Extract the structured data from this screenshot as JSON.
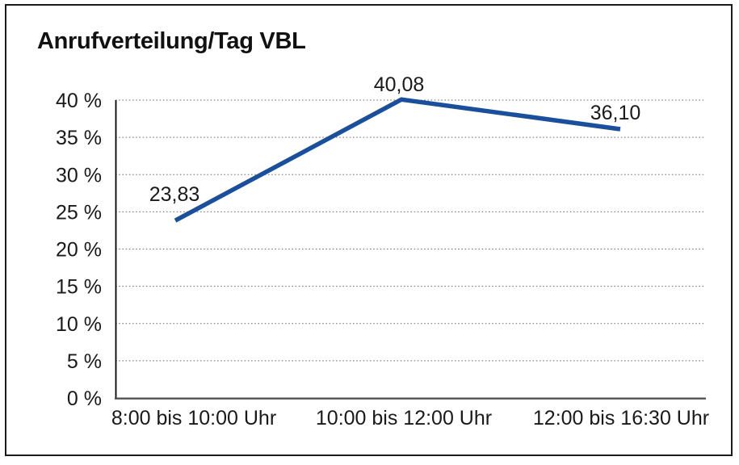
{
  "chart_data": {
    "type": "line",
    "title": "Anrufverteilung/Tag VBL",
    "categories": [
      "8:00 bis 10:00 Uhr",
      "10:00 bis 12:00 Uhr",
      "12:00 bis 16:30 Uhr"
    ],
    "values": [
      23.83,
      40.08,
      36.1
    ],
    "point_labels": [
      "23,83",
      "40,08",
      "36,10"
    ],
    "y_ticks": [
      "0 %",
      "5 %",
      "10 %",
      "15 %",
      "20 %",
      "25 %",
      "30 %",
      "35 %",
      "40 %"
    ],
    "ylim": [
      0,
      40
    ],
    "y_tick_step": 5,
    "xlabel": "",
    "ylabel": "",
    "grid": "horizontal-dotted",
    "legend": "none",
    "line_color": "#1a509b",
    "text_color": "#1a1a1a"
  }
}
